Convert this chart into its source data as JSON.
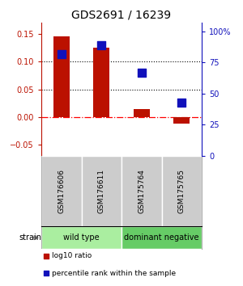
{
  "title": "GDS2691 / 16239",
  "samples": [
    "GSM176606",
    "GSM176611",
    "GSM175764",
    "GSM175765"
  ],
  "log10_ratio": [
    0.145,
    0.125,
    0.015,
    -0.012
  ],
  "percentile_rank": [
    82,
    89,
    67,
    43
  ],
  "bar_color": "#bb1100",
  "dot_color": "#1111bb",
  "ylim_left": [
    -0.07,
    0.17
  ],
  "ylim_right": [
    0,
    107
  ],
  "yticks_left": [
    -0.05,
    0.0,
    0.05,
    0.1,
    0.15
  ],
  "yticks_right": [
    0,
    25,
    50,
    75,
    100
  ],
  "ytick_labels_right": [
    "0",
    "25",
    "50",
    "75",
    "100%"
  ],
  "groups": [
    {
      "label": "wild type",
      "indices": [
        0,
        1
      ],
      "color": "#aaeea0"
    },
    {
      "label": "dominant negative",
      "indices": [
        2,
        3
      ],
      "color": "#66cc66"
    }
  ],
  "strain_label": "strain",
  "bar_width": 0.4,
  "dot_size": 45,
  "background_color": "#ffffff",
  "legend_items": [
    {
      "color": "#bb1100",
      "label": "log10 ratio"
    },
    {
      "color": "#1111bb",
      "label": "percentile rank within the sample"
    }
  ]
}
